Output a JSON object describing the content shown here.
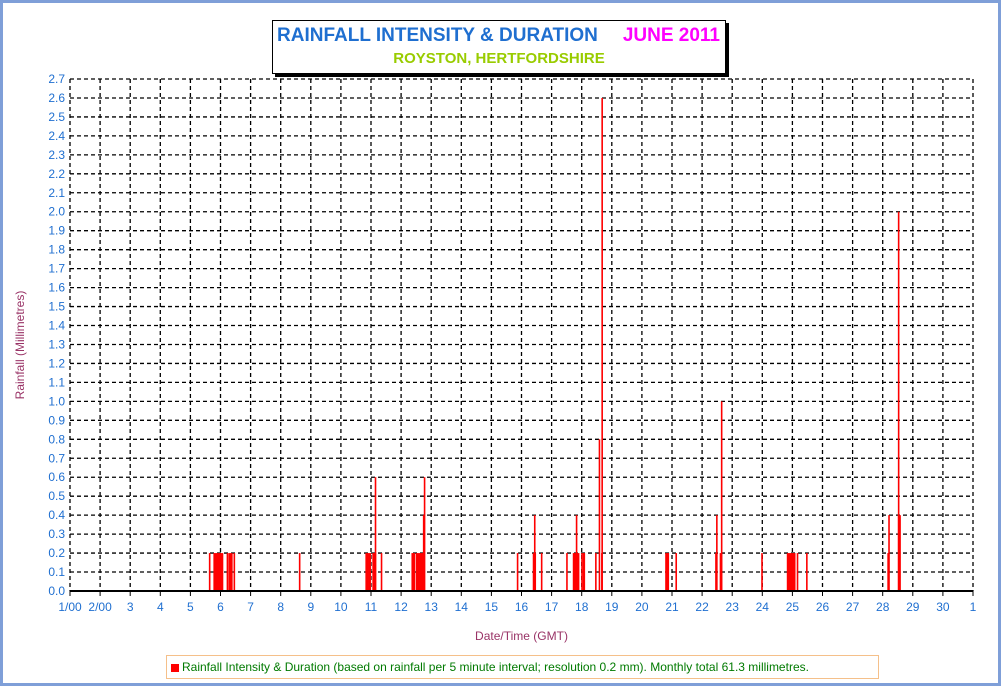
{
  "chart_data": {
    "type": "bar",
    "title": "RAINFALL INTENSITY & DURATION",
    "title_month": "JUNE 2011",
    "subtitle": "ROYSTON, HERTFORDSHIRE",
    "xlabel": "Date/Time (GMT)",
    "ylabel": "Rainfall (Millimetres)",
    "ylim": [
      0,
      2.7
    ],
    "y_step": 0.1,
    "xlim": [
      1,
      31
    ],
    "x_tick_labels": [
      "1/00",
      "2/00",
      "3",
      "4",
      "5",
      "6",
      "7",
      "8",
      "9",
      "10",
      "11",
      "12",
      "13",
      "14",
      "15",
      "16",
      "17",
      "18",
      "19",
      "20",
      "21",
      "22",
      "23",
      "24",
      "25",
      "26",
      "27",
      "28",
      "29",
      "30",
      "1"
    ],
    "grid": true,
    "legend": {
      "position": "bottom",
      "label": "Rainfall Intensity & Duration (based on rainfall per 5 minute interval; resolution 0.2 mm). Monthly total 61.3 millimetres."
    },
    "bar_color": "#ff0000",
    "series": [
      {
        "name": "Rainfall Intensity & Duration",
        "segments": [
          {
            "start": 5.63,
            "end": 5.63,
            "mm": 0.2
          },
          {
            "start": 5.78,
            "end": 6.11,
            "mm": 0.2
          },
          {
            "start": 6.22,
            "end": 6.22,
            "mm": 0.2
          },
          {
            "start": 6.28,
            "end": 6.42,
            "mm": 0.2
          },
          {
            "start": 6.45,
            "end": 6.45,
            "mm": 0.2
          },
          {
            "start": 8.62,
            "end": 8.62,
            "mm": 0.2
          },
          {
            "start": 10.83,
            "end": 10.83,
            "mm": 0.2
          },
          {
            "start": 10.88,
            "end": 10.88,
            "mm": 0.2
          },
          {
            "start": 10.93,
            "end": 11.02,
            "mm": 0.2
          },
          {
            "start": 11.06,
            "end": 11.19,
            "mm": 0.2
          },
          {
            "start": 11.14,
            "end": 11.14,
            "mm": 0.6
          },
          {
            "start": 11.34,
            "end": 11.34,
            "mm": 0.2
          },
          {
            "start": 12.36,
            "end": 12.48,
            "mm": 0.2
          },
          {
            "start": 12.5,
            "end": 12.78,
            "mm": 0.2
          },
          {
            "start": 12.74,
            "end": 12.78,
            "mm": 0.4
          },
          {
            "start": 12.77,
            "end": 12.77,
            "mm": 0.6
          },
          {
            "start": 15.86,
            "end": 15.86,
            "mm": 0.2
          },
          {
            "start": 16.39,
            "end": 16.5,
            "mm": 0.2
          },
          {
            "start": 16.43,
            "end": 16.47,
            "mm": 0.4
          },
          {
            "start": 16.66,
            "end": 16.66,
            "mm": 0.2
          },
          {
            "start": 17.5,
            "end": 17.5,
            "mm": 0.2
          },
          {
            "start": 17.72,
            "end": 17.94,
            "mm": 0.2
          },
          {
            "start": 17.82,
            "end": 17.85,
            "mm": 0.4
          },
          {
            "start": 18.0,
            "end": 18.0,
            "mm": 0.2
          },
          {
            "start": 18.05,
            "end": 18.13,
            "mm": 0.2
          },
          {
            "start": 18.46,
            "end": 18.46,
            "mm": 0.2
          },
          {
            "start": 18.58,
            "end": 18.58,
            "mm": 0.8
          },
          {
            "start": 18.66,
            "end": 18.69,
            "mm": 0.2
          },
          {
            "start": 18.67,
            "end": 18.67,
            "mm": 2.6
          },
          {
            "start": 20.79,
            "end": 20.92,
            "mm": 0.2
          },
          {
            "start": 21.13,
            "end": 21.13,
            "mm": 0.2
          },
          {
            "start": 22.45,
            "end": 22.45,
            "mm": 0.2
          },
          {
            "start": 22.48,
            "end": 22.48,
            "mm": 0.4
          },
          {
            "start": 22.6,
            "end": 22.67,
            "mm": 0.2
          },
          {
            "start": 22.64,
            "end": 22.64,
            "mm": 1.0
          },
          {
            "start": 23.98,
            "end": 23.98,
            "mm": 0.2
          },
          {
            "start": 24.83,
            "end": 25.12,
            "mm": 0.2
          },
          {
            "start": 25.16,
            "end": 25.16,
            "mm": 0.2
          },
          {
            "start": 25.47,
            "end": 25.47,
            "mm": 0.2
          },
          {
            "start": 28.17,
            "end": 28.22,
            "mm": 0.2
          },
          {
            "start": 28.2,
            "end": 28.2,
            "mm": 0.4
          },
          {
            "start": 28.52,
            "end": 28.62,
            "mm": 0.4
          },
          {
            "start": 28.52,
            "end": 28.52,
            "mm": 2.0
          }
        ]
      }
    ]
  }
}
